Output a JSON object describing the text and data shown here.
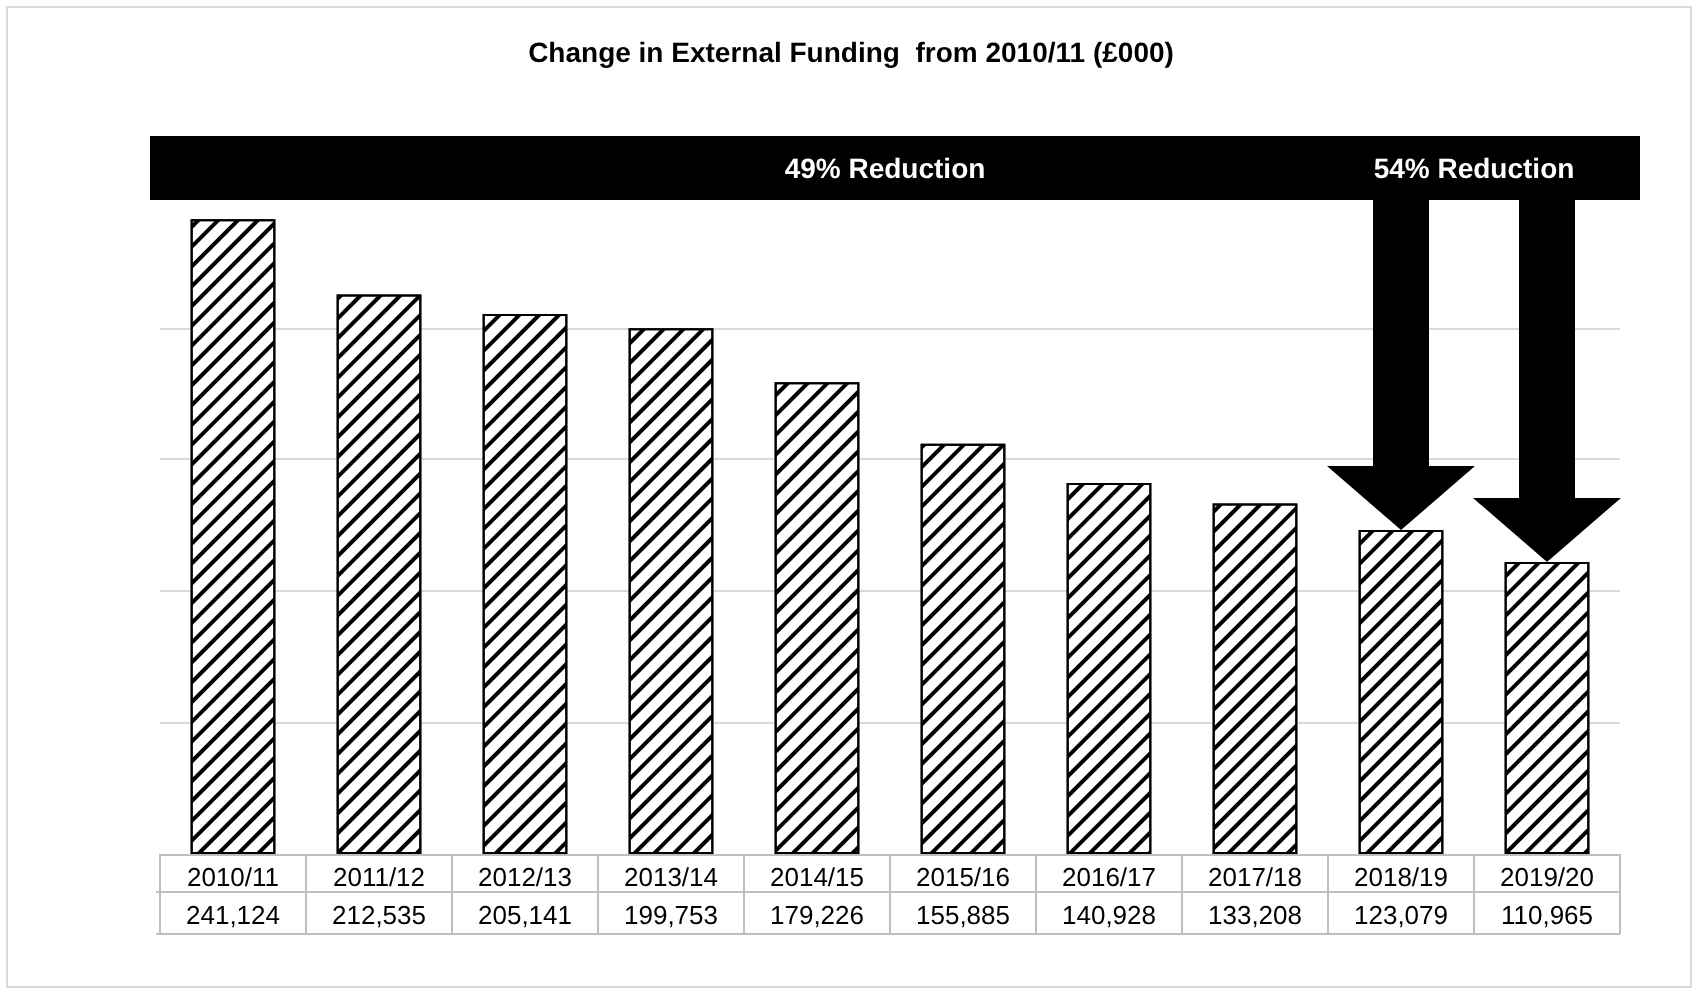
{
  "chart_data": {
    "type": "bar",
    "title": "Change in External Funding  from 2010/11 (£000)",
    "categories": [
      "2010/11",
      "2011/12",
      "2012/13",
      "2013/14",
      "2014/15",
      "2015/16",
      "2016/17",
      "2017/18",
      "2018/19",
      "2019/20"
    ],
    "values": [
      241124,
      212535,
      205141,
      199753,
      179226,
      155885,
      140928,
      133208,
      123079,
      110965
    ],
    "value_labels": [
      "241,124",
      "212,535",
      "205,141",
      "199,753",
      "179,226",
      "155,885",
      "140,928",
      "133,208",
      "123,079",
      "110,965"
    ],
    "color": "#ffffff",
    "tick_labels": "x",
    "grid": "y",
    "annotations": [
      "49% Reduction",
      "54% Reduction"
    ]
  }
}
